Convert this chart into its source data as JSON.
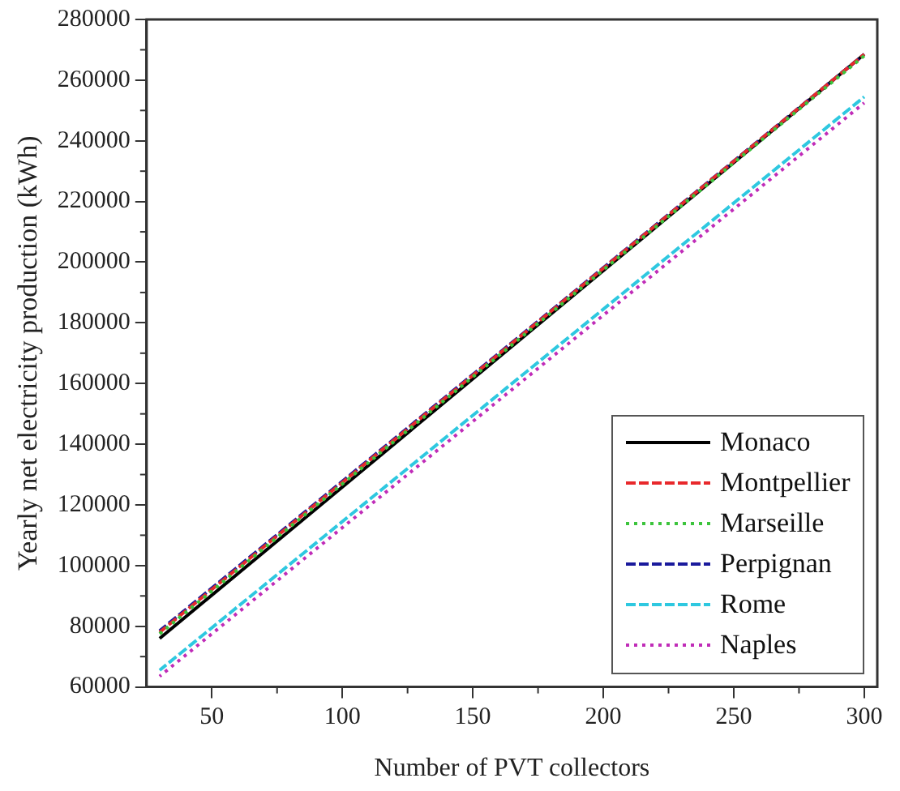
{
  "chart_data": {
    "type": "line",
    "xlabel": "Number of PVT collectors",
    "ylabel": "Yearly net electricity production (kWh)",
    "x": [
      30,
      300
    ],
    "series": [
      {
        "name": "Monaco",
        "color": "#000000",
        "line_style": "solid",
        "values": [
          76000,
          268500
        ]
      },
      {
        "name": "Montpellier",
        "color": "#e8282b",
        "line_style": "dashed",
        "values": [
          78000,
          268500
        ]
      },
      {
        "name": "Marseille",
        "color": "#3cc43c",
        "line_style": "dotted",
        "values": [
          77500,
          268000
        ]
      },
      {
        "name": "Perpignan",
        "color": "#1a1a9c",
        "line_style": "dashed",
        "values": [
          78500,
          268500
        ]
      },
      {
        "name": "Rome",
        "color": "#2ec8e0",
        "line_style": "dashed",
        "values": [
          65500,
          254500
        ]
      },
      {
        "name": "Naples",
        "color": "#c02cb8",
        "line_style": "dotted",
        "values": [
          63500,
          252500
        ]
      }
    ],
    "xlim": [
      25,
      305
    ],
    "xticks": [
      50,
      100,
      150,
      200,
      250,
      300
    ],
    "ylim": [
      60000,
      280000
    ],
    "yticks": [
      60000,
      80000,
      100000,
      120000,
      140000,
      160000,
      180000,
      200000,
      220000,
      240000,
      260000,
      280000
    ],
    "grid": false,
    "legend": "bottom right",
    "marker": "none"
  }
}
